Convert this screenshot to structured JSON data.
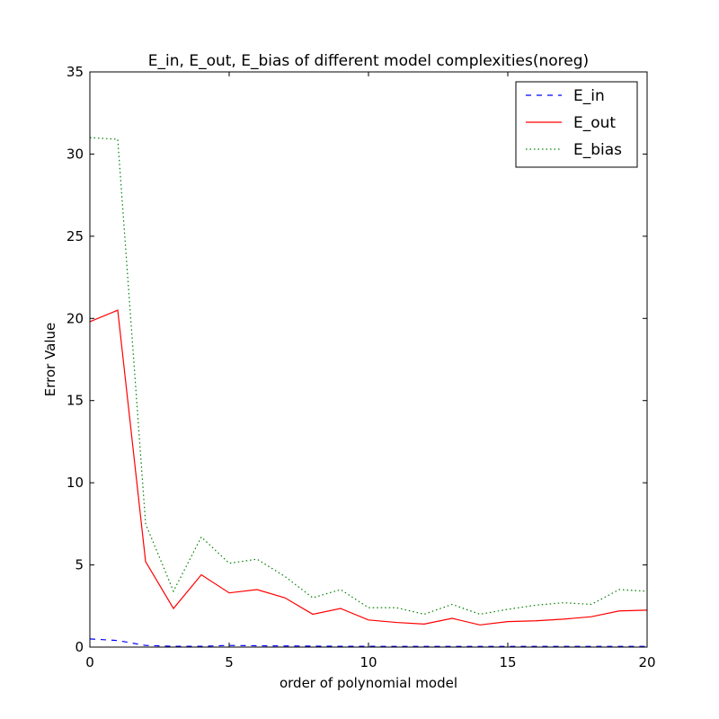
{
  "chart_data": {
    "type": "line",
    "title": "E_in, E_out, E_bias of different model complexities(noreg)",
    "xlabel": "order of polynomial model",
    "ylabel": "Error Value",
    "xlim": [
      0,
      20
    ],
    "ylim": [
      0,
      35
    ],
    "xticks": [
      0,
      5,
      10,
      15,
      20
    ],
    "yticks": [
      0,
      5,
      10,
      15,
      20,
      25,
      30,
      35
    ],
    "grid": false,
    "legend_position": "top-right",
    "x": [
      0,
      1,
      2,
      3,
      4,
      5,
      6,
      7,
      8,
      9,
      10,
      11,
      12,
      13,
      14,
      15,
      16,
      17,
      18,
      19,
      20
    ],
    "series": [
      {
        "name": "E_in",
        "color": "#0000ff",
        "style": "dashed",
        "values": [
          0.5,
          0.4,
          0.1,
          0.05,
          0.05,
          0.1,
          0.08,
          0.07,
          0.06,
          0.05,
          0.05,
          0.04,
          0.04,
          0.04,
          0.04,
          0.04,
          0.04,
          0.04,
          0.04,
          0.04,
          0.04
        ]
      },
      {
        "name": "E_out",
        "color": "#ff0000",
        "style": "solid",
        "values": [
          19.8,
          20.5,
          5.2,
          2.35,
          4.4,
          3.3,
          3.5,
          3.0,
          2.0,
          2.35,
          1.65,
          1.5,
          1.4,
          1.75,
          1.35,
          1.55,
          1.6,
          1.7,
          1.85,
          2.2,
          2.25
        ]
      },
      {
        "name": "E_bias",
        "color": "#008000",
        "style": "dotted",
        "values": [
          31.0,
          30.9,
          7.5,
          3.4,
          6.7,
          5.1,
          5.35,
          4.3,
          3.0,
          3.5,
          2.4,
          2.4,
          2.0,
          2.6,
          2.0,
          2.3,
          2.55,
          2.7,
          2.6,
          3.5,
          3.4
        ]
      }
    ]
  }
}
